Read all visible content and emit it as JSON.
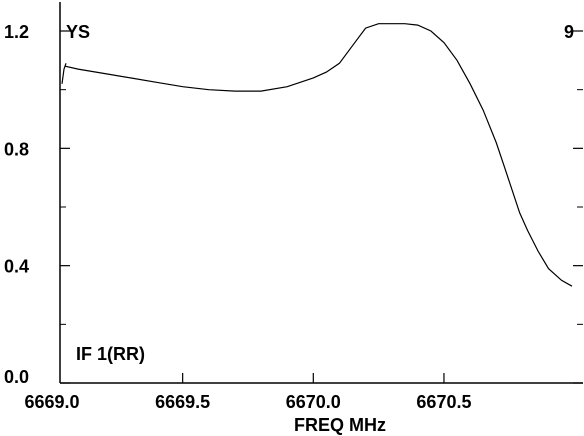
{
  "chart_data": {
    "type": "line",
    "title": "",
    "xlabel": "FREQ MHz",
    "ylabel": "",
    "xlim": [
      6669.0,
      6670.99
    ],
    "ylim": [
      0.0,
      1.23
    ],
    "x_ticks": [
      {
        "value": 6669.0,
        "label": "6669.0"
      },
      {
        "value": 6669.5,
        "label": "6669.5"
      },
      {
        "value": 6670.0,
        "label": "6670.0"
      },
      {
        "value": 6670.5,
        "label": "6670.5"
      }
    ],
    "y_ticks": [
      {
        "value": 0.0,
        "label": "0.0"
      },
      {
        "value": 0.4,
        "label": "0.4"
      },
      {
        "value": 0.8,
        "label": "0.8"
      },
      {
        "value": 1.2,
        "label": "1.2"
      }
    ],
    "y_minor_ticks": [
      0.2,
      0.6,
      1.0
    ],
    "annotations": {
      "top_left": "YS",
      "top_right": "9",
      "bottom_left": "IF 1(RR)"
    },
    "grid": false,
    "series": [
      {
        "color": "#000000",
        "x": [
          6668.95,
          6668.97,
          6669.0,
          6669.05,
          6669.1,
          6669.2,
          6669.3,
          6669.4,
          6669.5,
          6669.6,
          6669.7,
          6669.8,
          6669.9,
          6670.0,
          6670.05,
          6670.1,
          6670.15,
          6670.2,
          6670.25,
          6670.3,
          6670.35,
          6670.4,
          6670.45,
          6670.5,
          6670.55,
          6670.6,
          6670.65,
          6670.7,
          6670.73,
          6670.76,
          6670.79,
          6670.82,
          6670.86,
          6670.9,
          6670.95,
          6670.99
        ],
        "y": [
          1.02,
          1.07,
          1.09,
          1.08,
          1.07,
          1.055,
          1.04,
          1.025,
          1.01,
          1.0,
          0.995,
          0.995,
          1.01,
          1.04,
          1.06,
          1.09,
          1.15,
          1.21,
          1.225,
          1.225,
          1.225,
          1.22,
          1.2,
          1.16,
          1.1,
          1.02,
          0.93,
          0.82,
          0.74,
          0.66,
          0.58,
          0.52,
          0.45,
          0.39,
          0.35,
          0.33
        ]
      }
    ]
  }
}
